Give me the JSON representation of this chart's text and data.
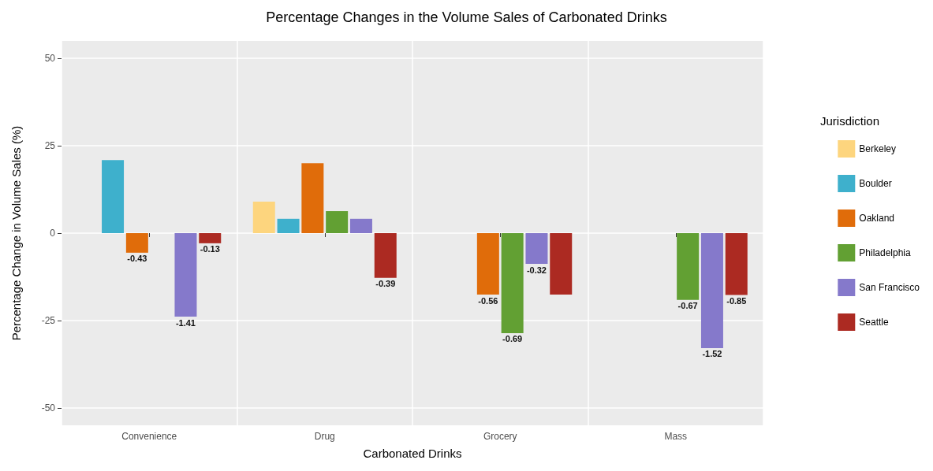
{
  "chart_data": {
    "type": "bar",
    "title": "Percentage Changes in the Volume Sales of Carbonated Drinks",
    "xlabel": "Carbonated Drinks",
    "ylabel": "Percentage Change in Volume Sales (%)",
    "legend_title": "Jurisdiction",
    "categories": [
      "Convenience",
      "Drug",
      "Grocery",
      "Mass"
    ],
    "series": [
      {
        "name": "Berkeley",
        "color": "#fdd57e",
        "values": [
          null,
          9.0,
          null,
          null
        ]
      },
      {
        "name": "Boulder",
        "color": "#3eb0cc",
        "values": [
          20.9,
          4.1,
          null,
          null
        ]
      },
      {
        "name": "Oakland",
        "color": "#e06c0a",
        "values": [
          -5.6,
          20.0,
          -17.6,
          null
        ]
      },
      {
        "name": "Philadelphia",
        "color": "#62a033",
        "values": [
          null,
          6.3,
          -28.6,
          -19.1
        ]
      },
      {
        "name": "San Francisco",
        "color": "#8579cb",
        "values": [
          -23.9,
          4.1,
          -8.8,
          -32.9
        ]
      },
      {
        "name": "Seattle",
        "color": "#ac2a22",
        "values": [
          -2.9,
          -12.8,
          -17.6,
          -17.7
        ]
      }
    ],
    "annotations": [
      {
        "text": "-0.43",
        "x": "Convenience",
        "y": -5.6
      },
      {
        "text": "-1.41",
        "y": -23.9
      },
      {
        "text": "-0.13",
        "y": -2.9
      },
      {
        "text": "-0.39",
        "y": -12.8
      },
      {
        "text": "-0.56",
        "x": "Grocery",
        "y": -17.6
      },
      {
        "text": "-0.69",
        "x": "Grocery",
        "y": -28.6
      },
      {
        "text": "-0.32",
        "y": -8.8
      },
      {
        "text": "-0.67",
        "x": "Mass",
        "y": -19.1
      },
      {
        "text": "-1.52",
        "y": -32.9
      },
      {
        "text": "-0.85",
        "y": -17.7
      }
    ],
    "ylim": [
      -55,
      55
    ],
    "yticks": [
      -50,
      -25,
      0,
      25,
      50
    ],
    "grid": true,
    "legend": "right"
  }
}
